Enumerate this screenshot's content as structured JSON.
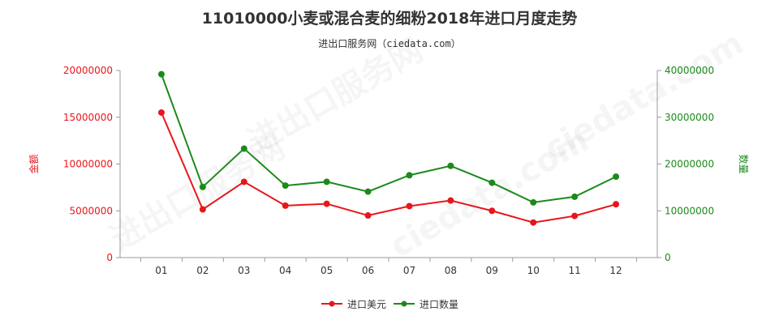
{
  "chart_data": {
    "type": "line",
    "title": "11010000小麦或混合麦的细粉2018年进口月度走势",
    "subtitle": "进出口服务网（ciedata.com）",
    "categories": [
      "01",
      "02",
      "03",
      "04",
      "05",
      "06",
      "07",
      "08",
      "09",
      "10",
      "11",
      "12"
    ],
    "y_left": {
      "label": "金额",
      "ticks": [
        "0",
        "5000000",
        "10000000",
        "15000000",
        "20000000"
      ],
      "range": [
        0,
        20000000
      ],
      "color": "#e8161a"
    },
    "y_right": {
      "label": "数量",
      "ticks": [
        "0",
        "10000000",
        "20000000",
        "30000000",
        "40000000"
      ],
      "range": [
        0,
        40000000
      ],
      "color": "#1b8a1b"
    },
    "series": [
      {
        "name": "进口美元",
        "axis": "left",
        "color": "#e8161a",
        "values": [
          15500000,
          5150000,
          8100000,
          5550000,
          5750000,
          4500000,
          5500000,
          6100000,
          5000000,
          3750000,
          4450000,
          5700000
        ]
      },
      {
        "name": "进口数量",
        "axis": "right",
        "color": "#1b8a1b",
        "values": [
          39200000,
          15100000,
          23300000,
          15400000,
          16200000,
          14100000,
          17600000,
          19600000,
          16000000,
          11800000,
          13000000,
          17300000
        ]
      }
    ],
    "grid": false,
    "legend_position": "bottom"
  }
}
